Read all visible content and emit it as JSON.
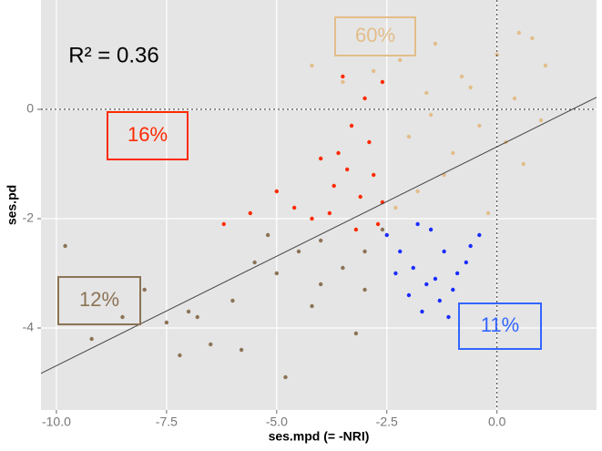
{
  "chart_data": {
    "type": "scatter",
    "x_label": "ses.mpd (= -NRI)",
    "y_label": "ses.pd",
    "xlim": [
      -10.35,
      2.26
    ],
    "ylim": [
      -5.5,
      2.0
    ],
    "xticks": [
      {
        "value": -10,
        "label": "-10.0"
      },
      -7.5,
      {
        "value": -5,
        "label": "-5.0"
      },
      -2.5,
      {
        "value": 0,
        "label": "0.0"
      }
    ],
    "yticks": [
      -4,
      -2,
      0
    ],
    "grid": true,
    "ref_x": 0,
    "ref_y": 0,
    "fit_line": {
      "x": [
        -10.35,
        2.26
      ],
      "y": [
        -4.83,
        0.22
      ],
      "color": "#444444"
    },
    "series": [
      {
        "color": "#e3bd8a",
        "x": [
          -2.3,
          -2.0,
          -1.6,
          -1.2,
          -0.8,
          -0.4,
          0.0,
          0.4,
          0.8,
          1.1,
          -1.8,
          -1.0,
          -0.2,
          0.6,
          -2.2,
          -1.4,
          -0.6,
          0.2,
          1.0,
          -3.5,
          -4.2,
          -2.8,
          0.5,
          -1.5
        ],
        "y": [
          -1.8,
          -0.5,
          0.3,
          -1.2,
          0.6,
          -0.3,
          1.0,
          0.2,
          1.3,
          0.8,
          -1.5,
          -0.8,
          -1.9,
          -1.0,
          0.9,
          1.2,
          0.4,
          -0.6,
          -0.2,
          0.5,
          0.8,
          0.7,
          1.4,
          -0.1
        ]
      },
      {
        "color": "#ff2a00",
        "x": [
          -2.6,
          -3.0,
          -3.3,
          -3.6,
          -2.8,
          -3.1,
          -3.8,
          -4.2,
          -4.6,
          -5.0,
          -5.6,
          -6.2,
          -2.7,
          -3.4,
          -2.9,
          -3.2,
          -4.0,
          -3.5,
          -2.6,
          -3.7
        ],
        "y": [
          0.5,
          0.2,
          -0.3,
          -0.8,
          -1.2,
          -1.6,
          -1.9,
          -2.0,
          -1.8,
          -1.5,
          -1.9,
          -2.1,
          -2.1,
          -1.1,
          -0.6,
          -2.2,
          -0.9,
          0.6,
          -1.7,
          -1.4
        ]
      },
      {
        "color": "#1a2cff",
        "x": [
          -2.5,
          -2.2,
          -1.9,
          -1.6,
          -1.3,
          -1.0,
          -0.7,
          -0.4,
          -2.0,
          -1.5,
          -1.2,
          -0.9,
          -2.3,
          -1.7,
          -1.1,
          -0.6,
          -1.4,
          -1.8
        ],
        "y": [
          -2.3,
          -2.6,
          -2.9,
          -3.2,
          -3.5,
          -3.3,
          -2.8,
          -2.3,
          -3.4,
          -2.2,
          -2.6,
          -3.0,
          -3.0,
          -3.7,
          -3.8,
          -2.5,
          -3.1,
          -2.1
        ]
      },
      {
        "color": "#8b7355",
        "x": [
          -9.8,
          -9.2,
          -8.5,
          -8.0,
          -7.5,
          -7.0,
          -6.5,
          -6.0,
          -5.5,
          -5.0,
          -4.5,
          -4.0,
          -3.5,
          -3.0,
          -2.6,
          -6.8,
          -5.8,
          -4.8,
          -4.2,
          -3.2,
          -7.2,
          -5.2,
          -4.0,
          -3.0
        ],
        "y": [
          -2.5,
          -4.2,
          -3.8,
          -3.3,
          -3.9,
          -3.7,
          -4.3,
          -3.5,
          -2.8,
          -3.0,
          -2.6,
          -2.4,
          -2.9,
          -3.3,
          -2.2,
          -3.8,
          -4.4,
          -4.9,
          -3.6,
          -4.1,
          -4.5,
          -2.3,
          -3.2,
          -2.6
        ]
      }
    ],
    "annotations": [
      {
        "text": "R² = 0.36",
        "color": "#000000"
      },
      {
        "text": "60%",
        "color": "#e3bd8a"
      },
      {
        "text": "16%",
        "color": "#ff2a00"
      },
      {
        "text": "12%",
        "color": "#8b7355"
      },
      {
        "text": "11%",
        "color": "#3366ff"
      }
    ]
  }
}
